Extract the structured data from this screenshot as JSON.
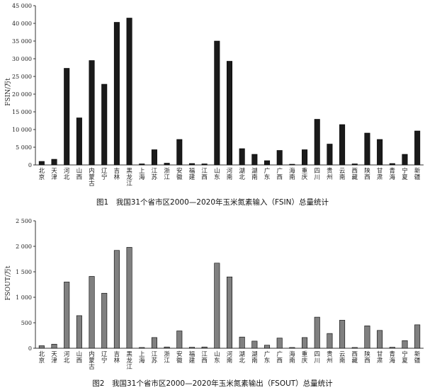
{
  "chart_data": [
    {
      "type": "bar",
      "caption": "图1　我国31个省市区2000—2020年玉米氮素输入（FSIN）总量统计",
      "ylabel": "FSIN/万t",
      "ylim": [
        0,
        45000
      ],
      "yticks": [
        0,
        5000,
        10000,
        15000,
        20000,
        25000,
        30000,
        35000,
        40000,
        45000
      ],
      "ytick_labels": [
        "0",
        "5 000",
        "10 000",
        "15 000",
        "20 000",
        "25 000",
        "30 000",
        "35 000",
        "40 000",
        "45 000"
      ],
      "bar_color": "#1a1a1a",
      "categories": [
        "北京",
        "天津",
        "河北",
        "山西",
        "内蒙古",
        "辽宁",
        "吉林",
        "黑龙江",
        "上海",
        "江苏",
        "浙江",
        "安徽",
        "福建",
        "江西",
        "山东",
        "河南",
        "湖北",
        "湖南",
        "广东",
        "广西",
        "海南",
        "重庆",
        "四川",
        "贵州",
        "云南",
        "西藏",
        "陕西",
        "甘肃",
        "青海",
        "宁夏",
        "新疆"
      ],
      "values": [
        1000,
        1600,
        27300,
        13300,
        29500,
        22800,
        40300,
        41500,
        300,
        4300,
        500,
        7200,
        400,
        300,
        35000,
        29300,
        4600,
        3000,
        1200,
        4100,
        200,
        4300,
        12900,
        5900,
        11400,
        300,
        9000,
        7200,
        400,
        3000,
        9600
      ]
    },
    {
      "type": "bar",
      "caption": "图2　我国31个省市区2000—2020年玉米氮素输出（FSOUT）总量统计",
      "ylabel": "FSOUT/万t",
      "ylim": [
        0,
        2500
      ],
      "yticks": [
        0,
        500,
        1000,
        1500,
        2000,
        2500
      ],
      "ytick_labels": [
        "0",
        "500",
        "1 000",
        "1 500",
        "2 000",
        "2 500"
      ],
      "bar_color": "#808080",
      "categories": [
        "北京",
        "天津",
        "河北",
        "山西",
        "内蒙古",
        "辽宁",
        "吉林",
        "黑龙江",
        "上海",
        "江苏",
        "浙江",
        "安徽",
        "福建",
        "江西",
        "山东",
        "河南",
        "湖北",
        "湖南",
        "广东",
        "广西",
        "海南",
        "重庆",
        "四川",
        "贵州",
        "云南",
        "西藏",
        "陕西",
        "甘肃",
        "青海",
        "宁夏",
        "新疆"
      ],
      "values": [
        50,
        80,
        1300,
        640,
        1410,
        1080,
        1920,
        1980,
        15,
        210,
        25,
        340,
        20,
        25,
        1670,
        1400,
        220,
        140,
        60,
        200,
        15,
        210,
        610,
        290,
        550,
        15,
        440,
        350,
        20,
        150,
        460
      ]
    }
  ]
}
